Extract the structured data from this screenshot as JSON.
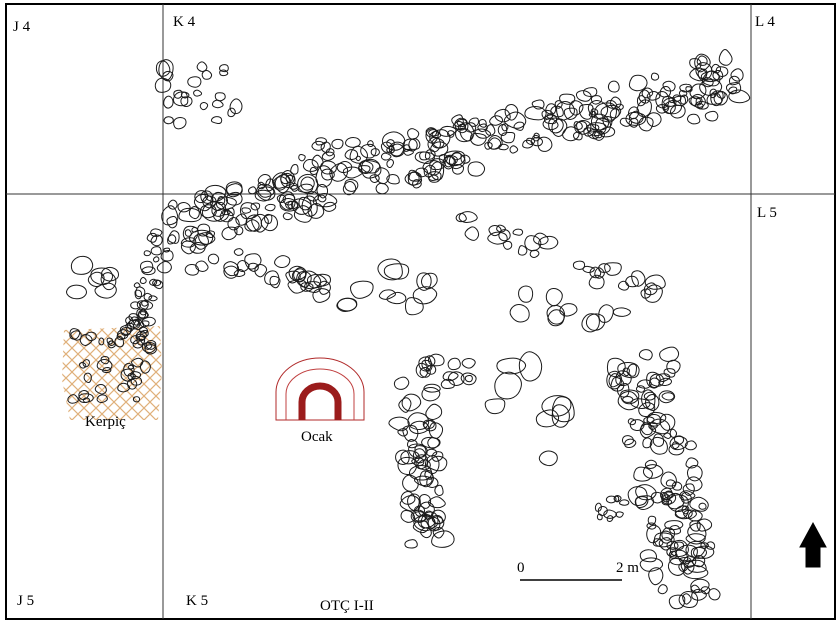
{
  "grid_labels": {
    "j4": "J 4",
    "k4": "K 4",
    "l4": "L 4",
    "l5": "L 5",
    "j5": "J 5",
    "k5": "K 5"
  },
  "annotations": {
    "kerpic": "Kerpiç",
    "ocak": "Ocak"
  },
  "title": "OTÇ I-II",
  "scale_bar": {
    "start_label": "0",
    "end_label": "2 m"
  },
  "colors": {
    "stone_outline": "#1a1a1a",
    "frame": "#000000",
    "kerpic_hatch": "#e0b07a",
    "hearth_outline": "#b02a2a",
    "hearth_fill": "#9b1c1c"
  },
  "north_arrow_icon": "up-arrow-icon"
}
